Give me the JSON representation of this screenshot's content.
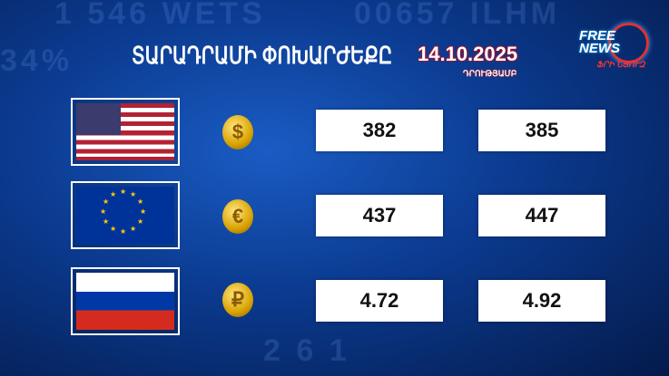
{
  "background_text": [
    "1 546 WETS",
    "00657 ILHM",
    "34%",
    "2 6 1"
  ],
  "header": {
    "title": "ՏԱՐԱԴՐԱՄԻ ՓՈԽԱՐԺԵՔԸ",
    "date": "14.10.2025",
    "date_caption": "ԴՐՈՒԹՅԱՄԲ"
  },
  "logo": {
    "text": "FREE NEWS",
    "subtitle": "ՖՐԻ ՆՅՈՒԶ"
  },
  "rates": [
    {
      "currency": "USD",
      "flag": "us-flag",
      "coin_symbol": "$",
      "buy": "382",
      "sell": "385"
    },
    {
      "currency": "EUR",
      "flag": "eu-flag",
      "coin_symbol": "€",
      "buy": "437",
      "sell": "447"
    },
    {
      "currency": "RUB",
      "flag": "ru-flag",
      "coin_symbol": "₽",
      "buy": "4.72",
      "sell": "4.92"
    }
  ],
  "colors": {
    "accent_red": "#e00000",
    "coin_gold": "#d9a200",
    "background": "#0b3a8f"
  }
}
